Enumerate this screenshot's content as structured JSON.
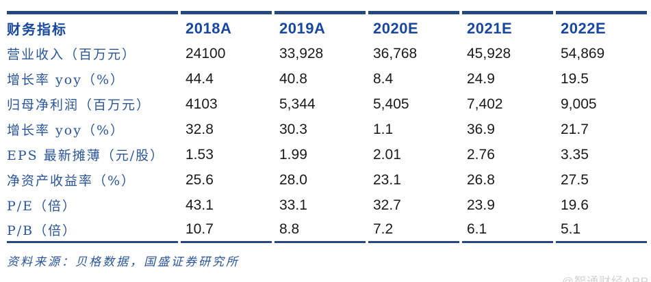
{
  "table": {
    "header": {
      "indicator_label": "财务指标",
      "years": [
        "2018A",
        "2019A",
        "2020E",
        "2021E",
        "2022E"
      ]
    },
    "rows": [
      {
        "label": "营业收入（百万元）",
        "values": [
          "24100",
          "33,928",
          "36,768",
          "45,928",
          "54,869"
        ]
      },
      {
        "label": "增长率 yoy（%）",
        "values": [
          "44.4",
          "40.8",
          "8.4",
          "24.9",
          "19.5"
        ]
      },
      {
        "label": "归母净利润（百万元）",
        "values": [
          "4103",
          "5,344",
          "5,405",
          "7,402",
          "9,005"
        ]
      },
      {
        "label": "增长率 yoy（%）",
        "values": [
          "32.8",
          "30.3",
          "1.1",
          "36.9",
          "21.7"
        ]
      },
      {
        "label": "EPS 最新摊薄（元/股）",
        "values": [
          "1.53",
          "1.99",
          "2.01",
          "2.76",
          "3.35"
        ]
      },
      {
        "label": "净资产收益率（%）",
        "values": [
          "25.6",
          "28.0",
          "23.1",
          "26.8",
          "27.5"
        ]
      },
      {
        "label": "P/E（倍）",
        "values": [
          "43.1",
          "33.1",
          "32.7",
          "23.9",
          "19.6"
        ]
      },
      {
        "label": "P/B（倍）",
        "values": [
          "10.7",
          "8.8",
          "7.2",
          "6.1",
          "5.1"
        ]
      }
    ]
  },
  "footer": {
    "source": "资料来源：贝格数据，国盛证券研究所"
  },
  "watermark": "@智通财经APP",
  "colors": {
    "header_text": "#17479e",
    "label_text": "#2a5599",
    "border": "#24477e",
    "number_text": "#1a1a1a",
    "watermark": "#d2d2d2"
  }
}
